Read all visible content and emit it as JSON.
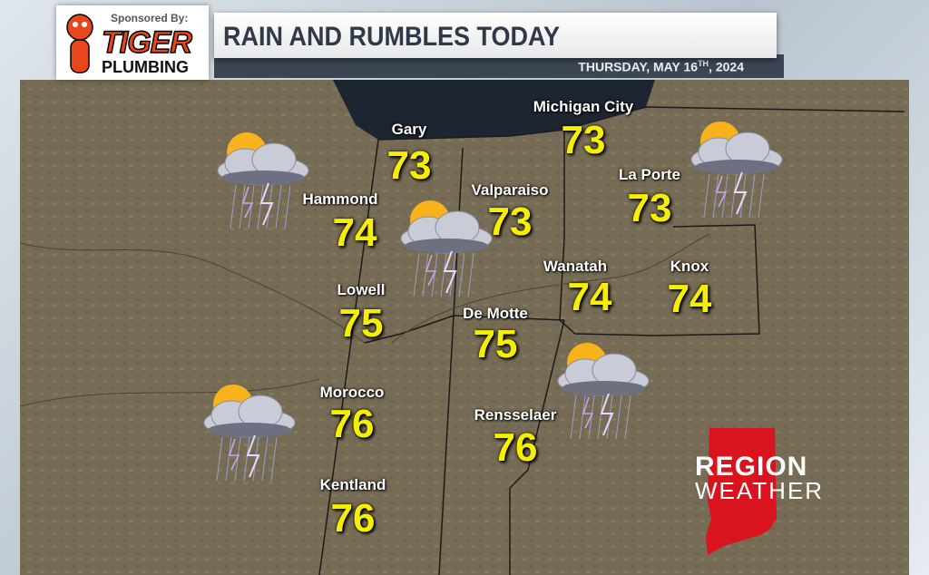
{
  "sponsor": {
    "label": "Sponsored By:",
    "brand_top": "TIGER",
    "brand_bottom": "PLUMBING"
  },
  "header": {
    "title": "RAIN AND RUMBLES TODAY",
    "date_prefix": "THURSDAY, MAY 16",
    "date_sup": "TH",
    "date_suffix": ", 2024"
  },
  "cities": [
    {
      "name": "Gary",
      "temp": "73",
      "icon": null
    },
    {
      "name": "Michigan City",
      "temp": "73"
    },
    {
      "name": "Hammond",
      "temp": "74"
    },
    {
      "name": "Valparaiso",
      "temp": "73"
    },
    {
      "name": "La Porte",
      "temp": "73"
    },
    {
      "name": "Lowell",
      "temp": "75"
    },
    {
      "name": "Wanatah",
      "temp": "74"
    },
    {
      "name": "Knox",
      "temp": "74"
    },
    {
      "name": "De Motte",
      "temp": "75"
    },
    {
      "name": "Morocco",
      "temp": "76"
    },
    {
      "name": "Rensselaer",
      "temp": "76"
    },
    {
      "name": "Kentland",
      "temp": "76"
    }
  ],
  "weather_icon": "partly-sunny-thunderstorm-icon",
  "logo": {
    "line1": "REGION",
    "line2": "WEATHER"
  },
  "colors": {
    "temp": "#f6f000",
    "logo_red": "#d9141e",
    "title_text": "#2f3a48",
    "date_bar": "#3b4654",
    "lake": "#1d2530",
    "land": "#7a6f58"
  }
}
